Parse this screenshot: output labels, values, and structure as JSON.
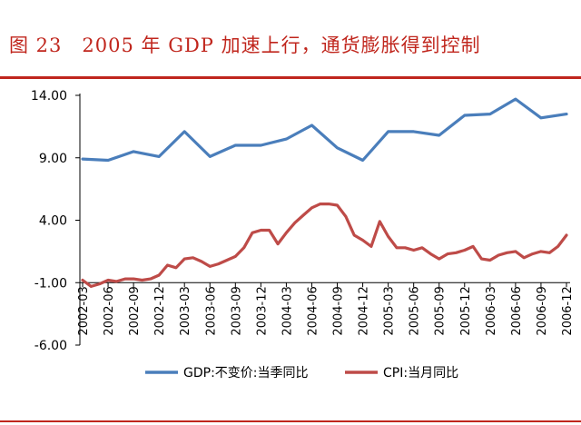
{
  "page": {
    "figure_label": "图 23",
    "figure_title": "2005 年 GDP 加速上行，通货膨胀得到控制",
    "accent_color": "#c0261d"
  },
  "chart_data": {
    "type": "line",
    "title": "2005 年 GDP 加速上行，通货膨胀得到控制",
    "xlabel": "",
    "ylabel": "",
    "ylim": [
      -6,
      14
    ],
    "y_ticks": [
      "14.00",
      "9.00",
      "4.00",
      "-1.00",
      "-6.00"
    ],
    "y_tick_values": [
      14,
      9,
      4,
      -1,
      -6
    ],
    "grid": false,
    "legend_position": "bottom",
    "x_tick_labels": [
      "2002-03",
      "2002-06",
      "2002-09",
      "2002-12",
      "2003-03",
      "2003-06",
      "2003-09",
      "2003-12",
      "2004-03",
      "2004-06",
      "2004-09",
      "2004-12",
      "2005-03",
      "2005-06",
      "2005-09",
      "2005-12",
      "2006-03",
      "2006-06",
      "2006-09",
      "2006-12"
    ],
    "series": [
      {
        "name": "GDP:不变价:当季同比",
        "color": "#4a7ebb",
        "frequency": "quarterly",
        "values": [
          8.9,
          8.8,
          9.5,
          9.1,
          11.1,
          9.1,
          10.0,
          10.0,
          10.5,
          11.6,
          9.8,
          8.8,
          11.1,
          11.1,
          10.8,
          12.4,
          12.5,
          13.7,
          12.2,
          12.5
        ]
      },
      {
        "name": "CPI:当月同比",
        "color": "#be4b48",
        "frequency": "monthly",
        "start": "2002-03",
        "values": [
          -0.8,
          -1.3,
          -1.1,
          -0.8,
          -0.9,
          -0.7,
          -0.7,
          -0.8,
          -0.7,
          -0.4,
          0.4,
          0.2,
          0.9,
          1.0,
          0.7,
          0.3,
          0.5,
          0.8,
          1.1,
          1.8,
          3.0,
          3.2,
          3.2,
          2.1,
          3.0,
          3.8,
          4.4,
          5.0,
          5.3,
          5.3,
          5.2,
          4.3,
          2.8,
          2.4,
          1.9,
          3.9,
          2.7,
          1.8,
          1.8,
          1.6,
          1.8,
          1.3,
          0.9,
          1.3,
          1.4,
          1.6,
          1.9,
          0.9,
          0.8,
          1.2,
          1.4,
          1.5,
          1.0,
          1.3,
          1.5,
          1.4,
          1.9,
          2.8
        ]
      }
    ]
  }
}
